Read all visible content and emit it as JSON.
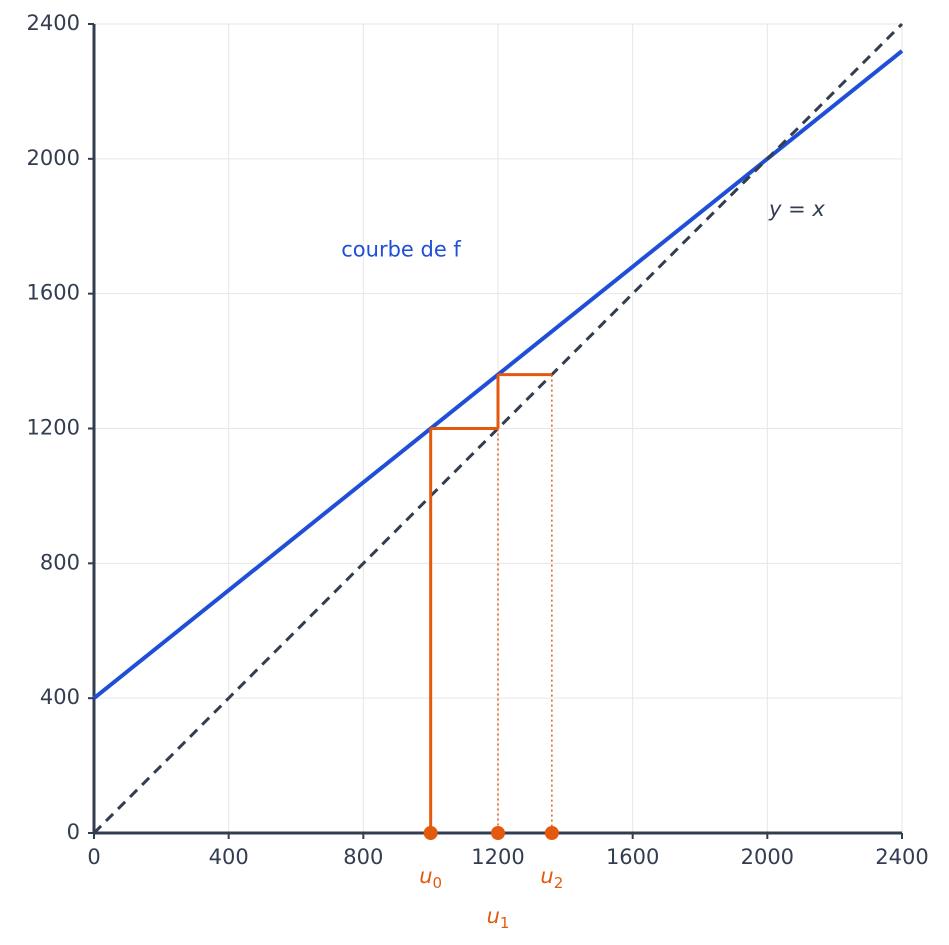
{
  "chart_data": {
    "type": "line",
    "xlim": [
      0,
      2400
    ],
    "ylim": [
      0,
      2400
    ],
    "xticks": [
      0,
      400,
      800,
      1200,
      1600,
      2000,
      2400
    ],
    "yticks": [
      0,
      400,
      800,
      1200,
      1600,
      2000,
      2400
    ],
    "grid": true,
    "series": [
      {
        "name": "courbe de f",
        "color": "#1f4fd6",
        "dash": false,
        "x": [
          0,
          2400
        ],
        "values": [
          400,
          2320
        ]
      },
      {
        "name": "y = x",
        "color": "#333d50",
        "dash": true,
        "x": [
          0,
          2400
        ],
        "values": [
          0,
          2400
        ]
      }
    ],
    "sequence": {
      "symbol": "u",
      "subscripts": [
        "0",
        "1",
        "2"
      ],
      "values": [
        1000,
        1200,
        1360
      ],
      "color": "#e35a0f"
    }
  }
}
